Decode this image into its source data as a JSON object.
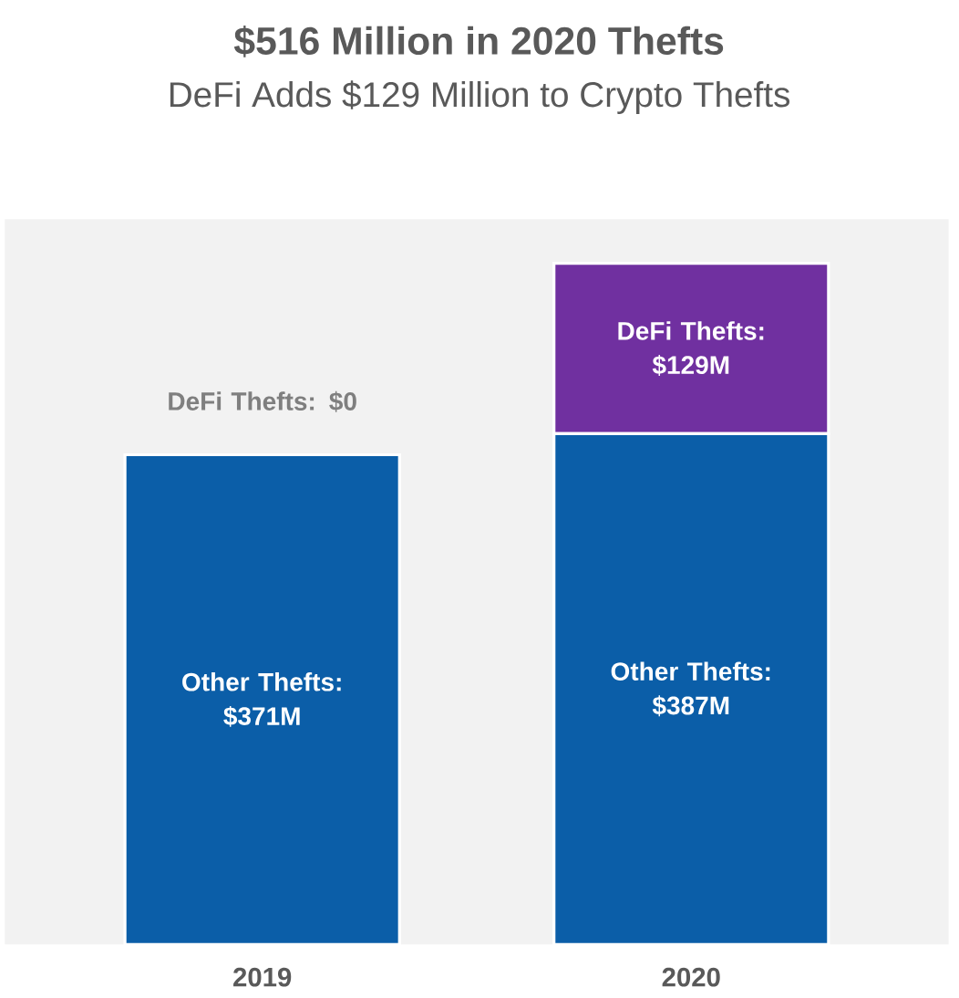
{
  "chart_data": {
    "type": "bar",
    "title": "$516 Million in 2020 Thefts",
    "subtitle": "DeFi Adds $129 Million to Crypto Thefts",
    "categories": [
      "2019",
      "2020"
    ],
    "stacked": true,
    "series": [
      {
        "color": "#0b5ea8",
        "values": [
          371,
          387
        ],
        "value_labels": [
          "Other Thefts: $371M",
          "Other Thefts: $387M"
        ]
      },
      {
        "color": "#7030a0",
        "values": [
          0,
          129
        ],
        "value_labels": [
          "DeFi Thefts: $0",
          "DeFi Thefts: $129M"
        ]
      }
    ]
  }
}
